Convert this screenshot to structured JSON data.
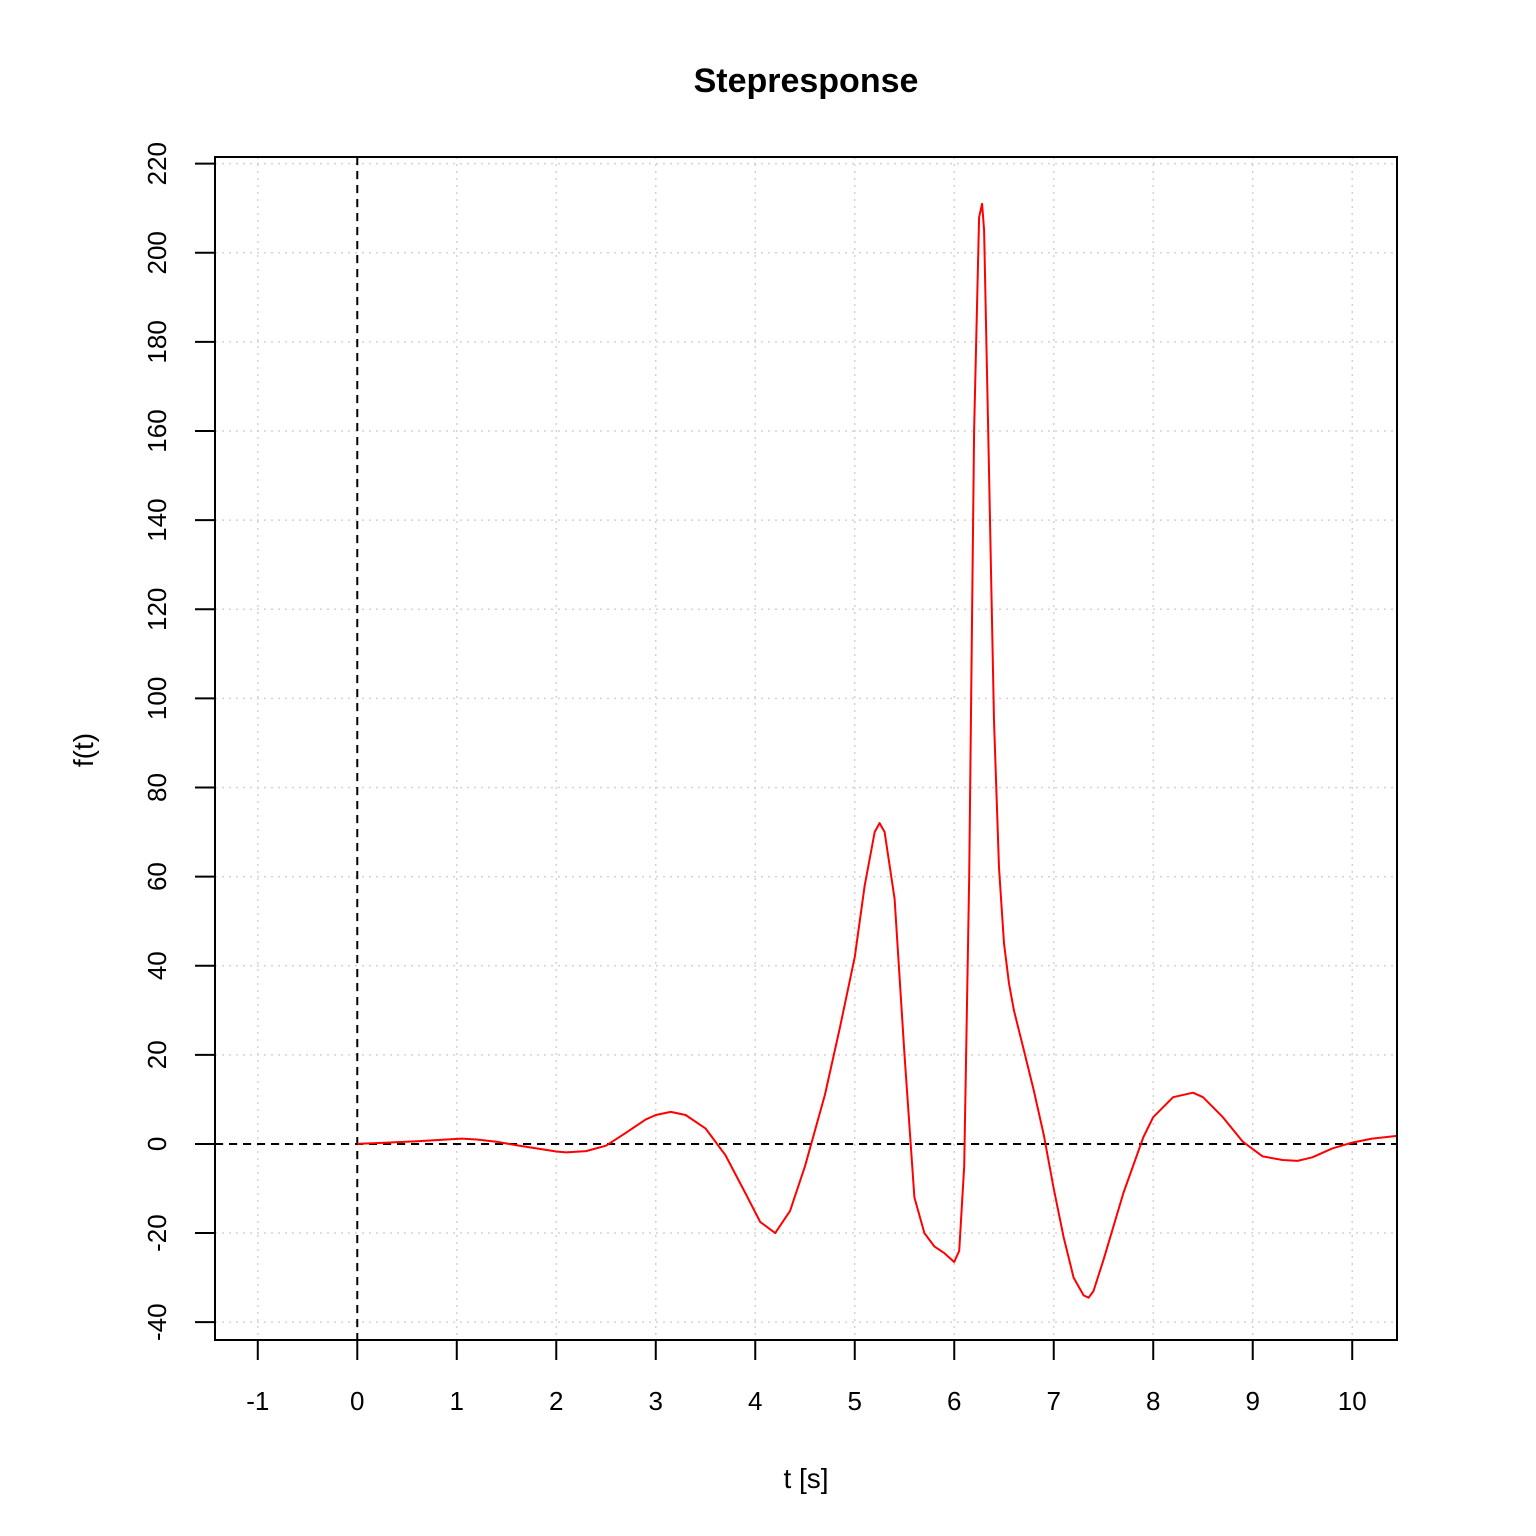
{
  "chart_data": {
    "type": "line",
    "title": "Stepresponse",
    "xlabel": "t [s]",
    "ylabel": "f(t)",
    "xlim": [
      -1.43,
      10.45
    ],
    "ylim": [
      -44,
      221.5
    ],
    "x_ticks": [
      -1,
      0,
      1,
      2,
      3,
      4,
      5,
      6,
      7,
      8,
      9,
      10
    ],
    "y_ticks": [
      -40,
      -20,
      0,
      20,
      40,
      60,
      80,
      100,
      120,
      140,
      160,
      180,
      200,
      220
    ],
    "x_tick_labels": [
      "-1",
      "0",
      "1",
      "2",
      "3",
      "4",
      "5",
      "6",
      "7",
      "8",
      "9",
      "10"
    ],
    "y_tick_labels": [
      "-40",
      "-20",
      "0",
      "20",
      "40",
      "60",
      "80",
      "100",
      "120",
      "140",
      "160",
      "180",
      "200",
      "220"
    ],
    "grid": true,
    "reference_lines": [
      {
        "orientation": "vertical",
        "value": 0,
        "style": "dashed",
        "color": "#000000"
      },
      {
        "orientation": "horizontal",
        "value": 0,
        "style": "dashed",
        "color": "#000000"
      }
    ],
    "series": [
      {
        "color": "#ff0000",
        "x": [
          0.0,
          0.3,
          0.6,
          0.9,
          1.05,
          1.2,
          1.4,
          1.6,
          1.8,
          2.0,
          2.1,
          2.3,
          2.5,
          2.7,
          2.9,
          3.0,
          3.15,
          3.3,
          3.5,
          3.7,
          3.9,
          4.05,
          4.2,
          4.35,
          4.5,
          4.7,
          4.85,
          5.0,
          5.1,
          5.2,
          5.25,
          5.3,
          5.4,
          5.5,
          5.6,
          5.7,
          5.8,
          5.9,
          6.0,
          6.05,
          6.1,
          6.15,
          6.2,
          6.25,
          6.28,
          6.3,
          6.35,
          6.4,
          6.45,
          6.5,
          6.55,
          6.6,
          6.7,
          6.8,
          6.9,
          7.0,
          7.1,
          7.2,
          7.3,
          7.35,
          7.4,
          7.5,
          7.7,
          7.9,
          8.0,
          8.2,
          8.4,
          8.5,
          8.7,
          8.9,
          9.1,
          9.3,
          9.45,
          9.6,
          9.8,
          10.0,
          10.2,
          10.45
        ],
        "y": [
          0.0,
          0.3,
          0.6,
          1.0,
          1.2,
          1.0,
          0.5,
          -0.3,
          -1.0,
          -1.7,
          -1.9,
          -1.6,
          -0.4,
          2.5,
          5.5,
          6.5,
          7.2,
          6.5,
          3.5,
          -2.5,
          -11.0,
          -17.5,
          -20.0,
          -15.0,
          -5.0,
          11.0,
          26.0,
          42.0,
          58.0,
          70.0,
          72.0,
          70.0,
          55.0,
          20.0,
          -12.0,
          -20.0,
          -23.0,
          -24.5,
          -26.5,
          -24.0,
          -5.0,
          60.0,
          160.0,
          208.0,
          211.0,
          205.0,
          150.0,
          95.0,
          62.0,
          45.0,
          36.0,
          30.0,
          21.0,
          12.0,
          2.0,
          -10.0,
          -21.0,
          -30.0,
          -34.0,
          -34.5,
          -33.0,
          -26.0,
          -11.0,
          1.5,
          6.0,
          10.5,
          11.5,
          10.5,
          6.0,
          0.5,
          -2.8,
          -3.6,
          -3.8,
          -3.0,
          -1.0,
          0.3,
          1.2,
          1.8
        ]
      }
    ]
  }
}
